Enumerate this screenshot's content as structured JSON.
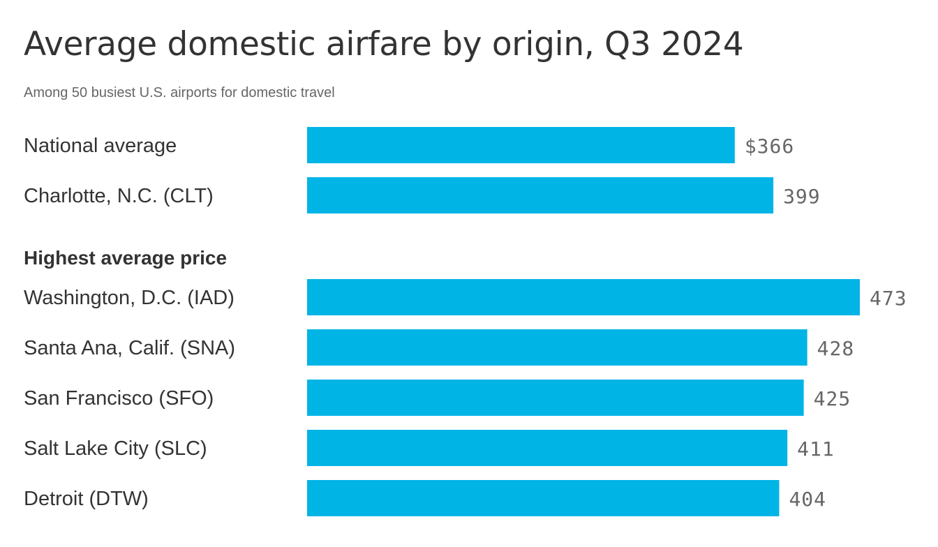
{
  "chart_data": {
    "type": "bar",
    "orientation": "horizontal",
    "title": "Average domestic airfare by origin, Q3 2024",
    "subtitle": "Among 50 busiest U.S. airports for domestic travel",
    "section_heading": "Highest average price",
    "bar_color": "#00b4e6",
    "groups": [
      {
        "heading": "",
        "items": [
          {
            "category": "National average",
            "value": 366,
            "label": "$366"
          },
          {
            "category": "Charlotte, N.C. (CLT)",
            "value": 399,
            "label": "399"
          }
        ]
      },
      {
        "heading": "Highest average price",
        "items": [
          {
            "category": "Washington, D.C. (IAD)",
            "value": 473,
            "label": "473"
          },
          {
            "category": "Santa Ana, Calif. (SNA)",
            "value": 428,
            "label": "428"
          },
          {
            "category": "San Francisco (SFO)",
            "value": 425,
            "label": "425"
          },
          {
            "category": "Salt Lake City (SLC)",
            "value": 411,
            "label": "411"
          },
          {
            "category": "Detroit (DTW)",
            "value": 404,
            "label": "404"
          }
        ]
      }
    ],
    "xlim": [
      0,
      473
    ],
    "grid": false,
    "legend": "none"
  }
}
